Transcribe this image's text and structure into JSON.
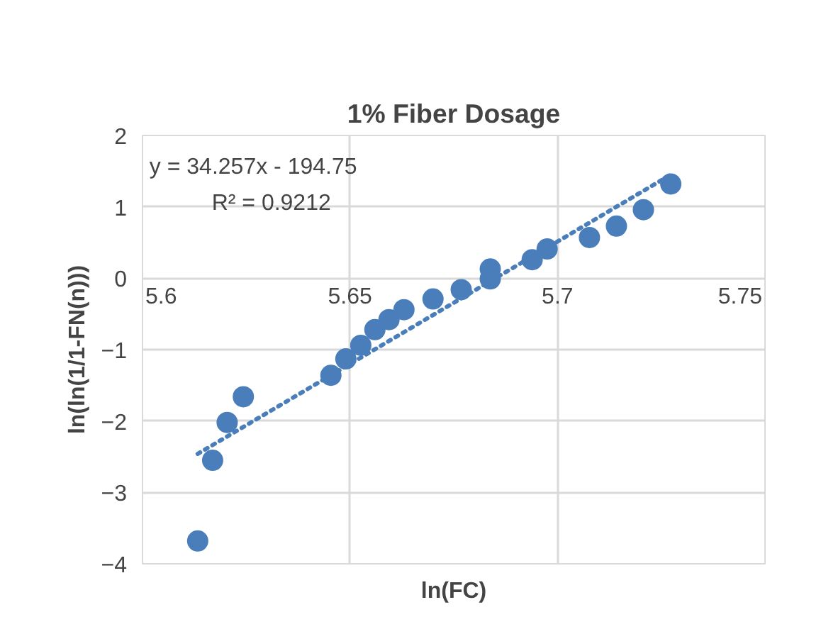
{
  "chart_data": {
    "type": "scatter",
    "title": "1% Fiber Dosage",
    "xlabel": "ln(FC)",
    "ylabel": "ln(ln(1/1-FN(n)))",
    "xlim": [
      5.6,
      5.75
    ],
    "xticks": [
      5.6,
      5.65,
      5.7,
      5.75
    ],
    "ylim": [
      -4,
      2
    ],
    "yticks": [
      -4,
      -3,
      -2,
      -1,
      0,
      1,
      2
    ],
    "grid": true,
    "series": [
      {
        "marker": "circle",
        "color": "#4a7ebb",
        "x": [
          5.6133,
          5.6169,
          5.6204,
          5.6243,
          5.6454,
          5.649,
          5.6526,
          5.656,
          5.6594,
          5.663,
          5.67,
          5.6768,
          5.6838,
          5.6838,
          5.6939,
          5.6975,
          5.7077,
          5.7142,
          5.7207,
          5.7273
        ],
        "values": [
          -3.68,
          -2.55,
          -2.02,
          -1.66,
          -1.36,
          -1.13,
          -0.94,
          -0.72,
          -0.58,
          -0.44,
          -0.29,
          -0.16,
          0.13,
          -0.01,
          0.26,
          0.41,
          0.57,
          0.73,
          0.96,
          1.32
        ]
      },
      {
        "type": "line",
        "line_style": "dotted",
        "color": "#4a7ebb",
        "x": [
          5.6133,
          5.7273
        ],
        "values": [
          -2.46,
          1.45
        ]
      }
    ],
    "annotations": [
      "y = 34.257x - 194.75",
      "R² = 0.9212"
    ]
  }
}
